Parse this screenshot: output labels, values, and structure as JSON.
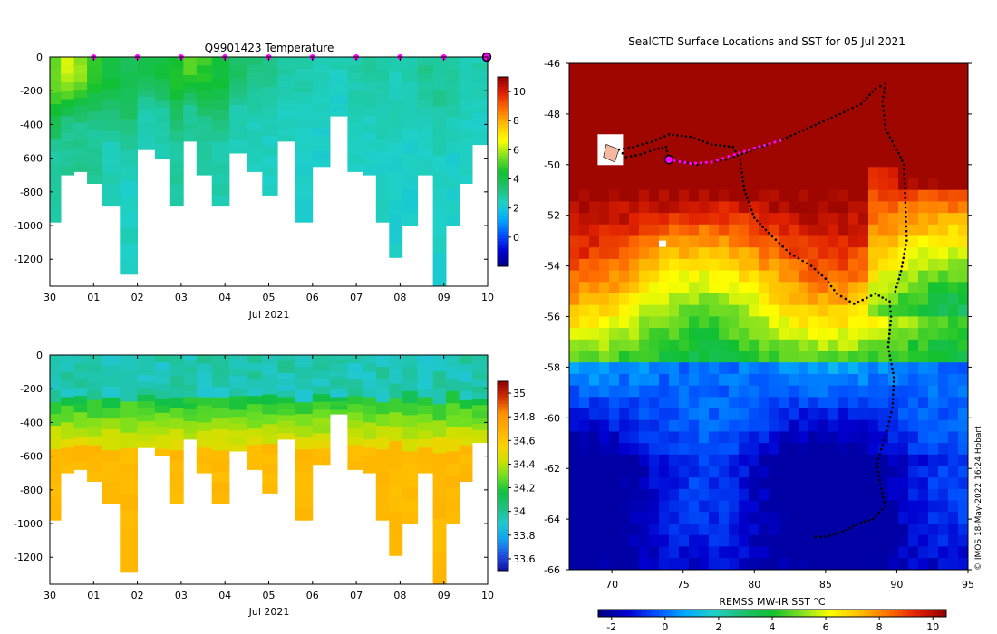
{
  "colors": {
    "temp_scale": [
      "#00007f",
      "#0000d0",
      "#0050ff",
      "#00aaff",
      "#1fd0c8",
      "#20c070",
      "#10c030",
      "#80e020",
      "#ffff00",
      "#ffc000",
      "#ff7000",
      "#e02000",
      "#900000"
    ],
    "salt_scale": [
      "#1010a0",
      "#2050e0",
      "#10a0f0",
      "#20c8d0",
      "#20c080",
      "#10c040",
      "#70e020",
      "#d0e000",
      "#ffd000",
      "#ffb000",
      "#ff9000",
      "#d03000",
      "#900000"
    ],
    "track": "#000000",
    "marker": "#ff00ff"
  },
  "chart_data": [
    {
      "id": "temperature-section",
      "type": "heatmap",
      "title": "Q9901423  Temperature",
      "xlabel": "Jul 2021",
      "x_ticks": [
        "30",
        "01",
        "02",
        "03",
        "04",
        "05",
        "06",
        "07",
        "08",
        "09",
        "10"
      ],
      "y_ticks": [
        "0",
        "-200",
        "-400",
        "-600",
        "-800",
        "-1000",
        "-1200"
      ],
      "ylim": [
        -1360,
        0
      ],
      "xlim": [
        30,
        40
      ],
      "colorbar_ticks": [
        "10",
        "8",
        "6",
        "4",
        "2",
        "0"
      ],
      "clim": [
        -2,
        11
      ],
      "marker_days": [
        1,
        2,
        3,
        4,
        5,
        6,
        7,
        8,
        9
      ],
      "last_profile_day": 10,
      "profiles": [
        {
          "t": 30.1,
          "depth": -980,
          "surf": 5.5,
          "deep": 2.8
        },
        {
          "t": 30.4,
          "depth": -700,
          "surf": 6.2,
          "deep": 3.0
        },
        {
          "t": 30.7,
          "depth": -680,
          "surf": 5.8,
          "deep": 3.0
        },
        {
          "t": 31.0,
          "depth": -750,
          "surf": 4.8,
          "deep": 2.9
        },
        {
          "t": 31.4,
          "depth": -880,
          "surf": 4.2,
          "deep": 2.6
        },
        {
          "t": 31.8,
          "depth": -1290,
          "surf": 3.8,
          "deep": 2.4
        },
        {
          "t": 32.2,
          "depth": -550,
          "surf": 4.0,
          "deep": 2.6
        },
        {
          "t": 32.6,
          "depth": -600,
          "surf": 4.3,
          "deep": 2.7
        },
        {
          "t": 32.9,
          "depth": -880,
          "surf": 4.6,
          "deep": 2.8
        },
        {
          "t": 33.2,
          "depth": -500,
          "surf": 5.2,
          "deep": 3.0
        },
        {
          "t": 33.5,
          "depth": -700,
          "surf": 4.8,
          "deep": 2.9
        },
        {
          "t": 33.9,
          "depth": -880,
          "surf": 4.2,
          "deep": 2.7
        },
        {
          "t": 34.3,
          "depth": -570,
          "surf": 3.6,
          "deep": 2.6
        },
        {
          "t": 34.7,
          "depth": -680,
          "surf": 3.2,
          "deep": 2.5
        },
        {
          "t": 35.0,
          "depth": -820,
          "surf": 3.0,
          "deep": 2.4
        },
        {
          "t": 35.4,
          "depth": -500,
          "surf": 2.8,
          "deep": 2.4
        },
        {
          "t": 35.8,
          "depth": -980,
          "surf": 2.6,
          "deep": 2.3
        },
        {
          "t": 36.2,
          "depth": -650,
          "surf": 2.6,
          "deep": 2.3
        },
        {
          "t": 36.6,
          "depth": -350,
          "surf": 2.5,
          "deep": 2.3
        },
        {
          "t": 37.0,
          "depth": -680,
          "surf": 2.7,
          "deep": 2.4
        },
        {
          "t": 37.3,
          "depth": -700,
          "surf": 2.8,
          "deep": 2.4
        },
        {
          "t": 37.6,
          "depth": -980,
          "surf": 2.7,
          "deep": 2.4
        },
        {
          "t": 37.9,
          "depth": -1190,
          "surf": 2.6,
          "deep": 2.3
        },
        {
          "t": 38.2,
          "depth": -1000,
          "surf": 2.7,
          "deep": 2.3
        },
        {
          "t": 38.6,
          "depth": -700,
          "surf": 3.0,
          "deep": 2.4
        },
        {
          "t": 38.9,
          "depth": -1360,
          "surf": 2.9,
          "deep": 2.3
        },
        {
          "t": 39.2,
          "depth": -1000,
          "surf": 2.8,
          "deep": 2.3
        },
        {
          "t": 39.5,
          "depth": -750,
          "surf": 2.7,
          "deep": 2.4
        },
        {
          "t": 39.8,
          "depth": -520,
          "surf": 2.6,
          "deep": 2.4
        }
      ]
    },
    {
      "id": "salinity-section",
      "type": "heatmap",
      "title": "",
      "xlabel": "Jul 2021",
      "x_ticks": [
        "30",
        "01",
        "02",
        "03",
        "04",
        "05",
        "06",
        "07",
        "08",
        "09",
        "10"
      ],
      "y_ticks": [
        "0",
        "-200",
        "-400",
        "-600",
        "-800",
        "-1000",
        "-1200"
      ],
      "ylim": [
        -1360,
        0
      ],
      "xlim": [
        30,
        40
      ],
      "colorbar_ticks": [
        "35",
        "34.8",
        "34.6",
        "34.4",
        "34.2",
        "34",
        "33.8",
        "33.6"
      ],
      "clim": [
        33.5,
        35.1
      ],
      "surface_salinity": 33.95,
      "deep_salinity": 34.7
    },
    {
      "id": "sst-map",
      "type": "heatmap",
      "title": "SealCTD Surface Locations and SST for 05 Jul 2021",
      "x_ticks": [
        "70",
        "75",
        "80",
        "85",
        "90",
        "95"
      ],
      "y_ticks": [
        "-46",
        "-48",
        "-50",
        "-52",
        "-54",
        "-56",
        "-58",
        "-60",
        "-62",
        "-64",
        "-66"
      ],
      "xlim": [
        67,
        95
      ],
      "ylim": [
        -66,
        -46
      ],
      "colorbar_label": "REMSS MW-IR SST °C",
      "colorbar_ticks": [
        "-2",
        "0",
        "2",
        "4",
        "6",
        "8",
        "10"
      ],
      "clim": [
        -2.5,
        10.5
      ],
      "current_location": {
        "lon": 74,
        "lat": -49.8
      },
      "track": [
        [
          74.0,
          -49.8
        ],
        [
          73.8,
          -49.3
        ],
        [
          73.0,
          -49.4
        ],
        [
          72.0,
          -49.6
        ],
        [
          71.0,
          -49.7
        ],
        [
          70.5,
          -49.4
        ],
        [
          71.5,
          -49.3
        ],
        [
          72.8,
          -49.1
        ],
        [
          74.0,
          -48.8
        ],
        [
          75.5,
          -48.9
        ],
        [
          77.0,
          -49.2
        ],
        [
          78.5,
          -49.3
        ],
        [
          79.0,
          -49.8
        ],
        [
          79.3,
          -51.0
        ],
        [
          80.0,
          -52.1
        ],
        [
          81.0,
          -52.7
        ],
        [
          82.5,
          -53.5
        ],
        [
          84.0,
          -54.0
        ],
        [
          85.0,
          -54.5
        ],
        [
          85.8,
          -55.1
        ],
        [
          87.0,
          -55.5
        ],
        [
          88.5,
          -55.1
        ],
        [
          89.5,
          -55.4
        ],
        [
          89.6,
          -56.0
        ],
        [
          89.4,
          -57.2
        ],
        [
          89.8,
          -58.4
        ],
        [
          89.7,
          -59.6
        ],
        [
          89.2,
          -60.7
        ],
        [
          88.6,
          -61.8
        ],
        [
          88.9,
          -62.8
        ],
        [
          89.2,
          -63.5
        ],
        [
          88.3,
          -64.0
        ],
        [
          87.2,
          -64.2
        ],
        [
          86.2,
          -64.5
        ],
        [
          85.0,
          -64.7
        ],
        [
          84.3,
          -64.7
        ]
      ],
      "track_branch": [
        [
          74.0,
          -49.8
        ],
        [
          76.0,
          -50.0
        ],
        [
          78.0,
          -49.8
        ],
        [
          80.0,
          -49.4
        ],
        [
          82.0,
          -49.0
        ],
        [
          84.0,
          -48.5
        ],
        [
          86.0,
          -48.0
        ],
        [
          87.5,
          -47.6
        ],
        [
          88.5,
          -47.0
        ],
        [
          89.2,
          -46.8
        ],
        [
          89.0,
          -47.5
        ],
        [
          89.2,
          -48.6
        ],
        [
          90.0,
          -49.4
        ],
        [
          90.5,
          -50.0
        ],
        [
          90.6,
          -51.5
        ],
        [
          90.7,
          -53.0
        ],
        [
          90.3,
          -54.2
        ],
        [
          89.9,
          -55.0
        ]
      ],
      "recent_days_track": [
        [
          74.0,
          -49.8
        ],
        [
          75.5,
          -49.95
        ],
        [
          77.0,
          -49.9
        ],
        [
          78.6,
          -49.6
        ],
        [
          80.0,
          -49.35
        ],
        [
          81.8,
          -49.05
        ]
      ]
    }
  ],
  "credit": "© IMOS 18-May-2022 16:24 Hobart"
}
